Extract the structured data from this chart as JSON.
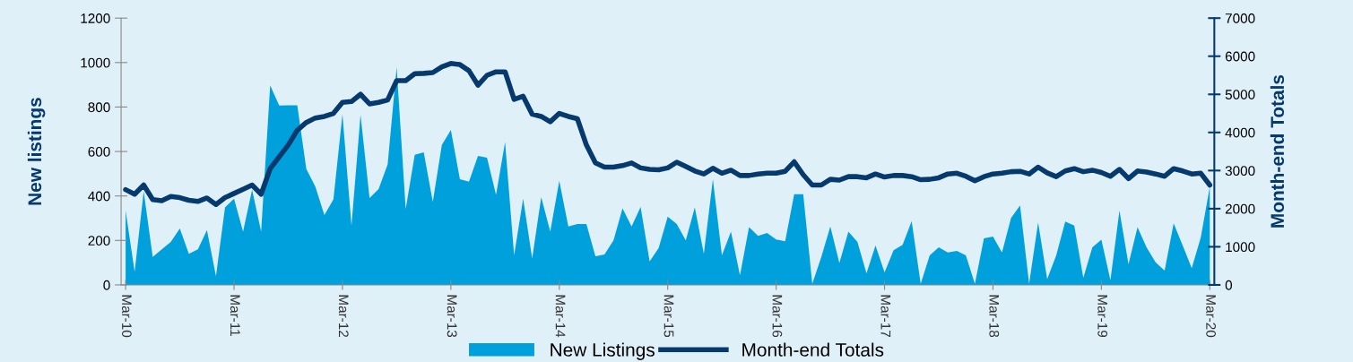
{
  "chart_data": {
    "type": "area",
    "categories": [
      "Mar-10",
      null,
      null,
      null,
      null,
      null,
      null,
      null,
      null,
      null,
      null,
      null,
      "Mar-11",
      null,
      null,
      null,
      null,
      null,
      null,
      null,
      null,
      null,
      null,
      null,
      "Mar-12",
      null,
      null,
      null,
      null,
      null,
      null,
      null,
      null,
      null,
      null,
      null,
      "Mar-13",
      null,
      null,
      null,
      null,
      null,
      null,
      null,
      null,
      null,
      null,
      null,
      "Mar-14",
      null,
      null,
      null,
      null,
      null,
      null,
      null,
      null,
      null,
      null,
      null,
      "Mar-15",
      null,
      null,
      null,
      null,
      null,
      null,
      null,
      null,
      null,
      null,
      null,
      "Mar-16",
      null,
      null,
      null,
      null,
      null,
      null,
      null,
      null,
      null,
      null,
      null,
      "Mar-17",
      null,
      null,
      null,
      null,
      null,
      null,
      null,
      null,
      null,
      null,
      null,
      "Mar-18",
      null,
      null,
      null,
      null,
      null,
      null,
      null,
      null,
      null,
      null,
      null,
      "Mar-19",
      null,
      null,
      null,
      null,
      null,
      null,
      null,
      null,
      null,
      null,
      null,
      "Mar-20"
    ],
    "series": [
      {
        "name": "New Listings",
        "color": "#00a0dc",
        "values": [
          334,
          59,
          421,
          126,
          160,
          193,
          254,
          140,
          160,
          247,
          39,
          348,
          388,
          240,
          428,
          240,
          898,
          807,
          808,
          808,
          522,
          442,
          314,
          385,
          768,
          267,
          766,
          391,
          431,
          542,
          979,
          341,
          585,
          596,
          374,
          630,
          697,
          475,
          464,
          580,
          572,
          405,
          643,
          133,
          388,
          119,
          395,
          240,
          468,
          263,
          274,
          274,
          129,
          137,
          200,
          344,
          263,
          350,
          106,
          166,
          307,
          274,
          200,
          348,
          140,
          475,
          133,
          240,
          43,
          260,
          220,
          234,
          204,
          196,
          408,
          408,
          5,
          126,
          263,
          99,
          240,
          193,
          52,
          177,
          56,
          156,
          180,
          287,
          5,
          133,
          169,
          146,
          153,
          133,
          5,
          209,
          217,
          146,
          301,
          357,
          5,
          281,
          26,
          133,
          285,
          267,
          32,
          169,
          203,
          21,
          334,
          93,
          260,
          169,
          102,
          64,
          277,
          177,
          75,
          213,
          442
        ]
      },
      {
        "name": "Month-end Totals",
        "type": "line",
        "axis": "y2",
        "color": "#063a6e",
        "values": [
          2500,
          2380,
          2620,
          2240,
          2210,
          2320,
          2290,
          2220,
          2190,
          2280,
          2110,
          2290,
          2400,
          2510,
          2620,
          2380,
          3050,
          3360,
          3670,
          4060,
          4260,
          4380,
          4420,
          4500,
          4790,
          4810,
          5000,
          4750,
          4790,
          4850,
          5360,
          5360,
          5540,
          5550,
          5570,
          5720,
          5810,
          5780,
          5620,
          5240,
          5500,
          5590,
          5590,
          4870,
          4950,
          4480,
          4420,
          4280,
          4500,
          4420,
          4360,
          3670,
          3200,
          3090,
          3090,
          3130,
          3200,
          3070,
          3030,
          3020,
          3070,
          3220,
          3110,
          2990,
          2910,
          3060,
          2930,
          3010,
          2870,
          2870,
          2910,
          2930,
          2930,
          2980,
          3230,
          2890,
          2620,
          2620,
          2770,
          2750,
          2840,
          2840,
          2810,
          2910,
          2830,
          2870,
          2870,
          2840,
          2760,
          2770,
          2810,
          2910,
          2930,
          2850,
          2730,
          2840,
          2910,
          2930,
          2970,
          2980,
          2910,
          3090,
          2940,
          2840,
          2990,
          3050,
          2970,
          3010,
          2950,
          2850,
          3030,
          2790,
          2990,
          2960,
          2910,
          2850,
          3050,
          2990,
          2910,
          2930,
          2620
        ]
      }
    ],
    "ylabel": "New listings",
    "y2label": "Month-end Totals",
    "ylim": [
      0,
      1200
    ],
    "yticks": [
      0,
      200,
      400,
      600,
      800,
      1000,
      1200
    ],
    "y2lim": [
      0,
      7000
    ],
    "y2ticks": [
      0,
      1000,
      2000,
      3000,
      4000,
      5000,
      6000,
      7000
    ],
    "legend": "bottom"
  }
}
